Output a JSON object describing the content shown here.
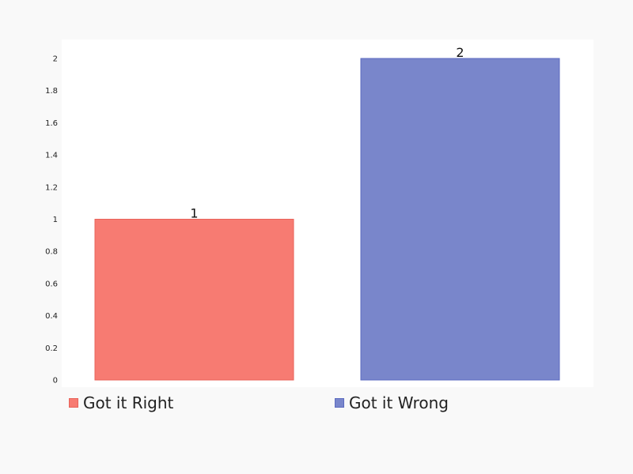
{
  "chart_data": {
    "type": "bar",
    "categories": [
      "Got it Right",
      "Got it Wrong"
    ],
    "values": [
      1,
      2
    ],
    "data_labels": [
      "1",
      "2"
    ],
    "ylim": [
      0,
      2
    ],
    "yticks": [
      0,
      0.2,
      0.4,
      0.6,
      0.8,
      1,
      1.2,
      1.4,
      1.6,
      1.8,
      2
    ],
    "ytick_labels": [
      "0",
      "0.2",
      "0.4",
      "0.6",
      "0.8",
      "1",
      "1.2",
      "1.4",
      "1.6",
      "1.8",
      "2"
    ],
    "colors": [
      "#f77b72",
      "#7986cb"
    ],
    "edge_colors": [
      "#e8635a",
      "#5c6bc0"
    ],
    "grid": false,
    "legend": {
      "position": "bottom",
      "entries": [
        "Got it Right",
        "Got it Wrong"
      ]
    }
  }
}
